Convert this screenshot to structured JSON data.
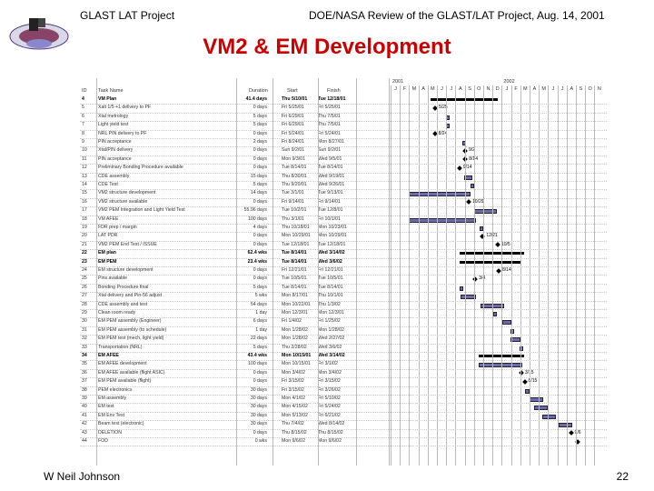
{
  "header": {
    "left": "GLAST LAT Project",
    "right": "DOE/NASA Review of the GLAST/LAT Project, Aug. 14, 2001"
  },
  "title": "VM2 & EM Development",
  "footer": {
    "author": "W Neil Johnson",
    "page": "22"
  },
  "gantt": {
    "columns": {
      "id": "ID",
      "name": "Task Name",
      "duration": "Duration",
      "start": "Start",
      "finish": "Finish"
    },
    "years": [
      "2001",
      "2002"
    ],
    "months": [
      "J",
      "F",
      "M",
      "A",
      "M",
      "J",
      "J",
      "A",
      "S",
      "O",
      "N",
      "D",
      "J",
      "F",
      "M",
      "A",
      "M",
      "J",
      "J",
      "A",
      "S",
      "O",
      "N"
    ],
    "rows": [
      {
        "id": "4",
        "name": "VM Plan",
        "duration": "41.4 days",
        "start": "Thu 5/10/01",
        "finish": "Tue 12/18/01",
        "bold": true
      },
      {
        "id": "5",
        "name": "Xalt 1/5 +1 delivery to PF",
        "duration": "0 days",
        "start": "Fri 5/25/01",
        "finish": "Fri 5/25/01"
      },
      {
        "id": "6",
        "name": "Xtal metrology",
        "duration": "5 days",
        "start": "Fri 6/29/01",
        "finish": "Thu 7/5/01"
      },
      {
        "id": "7",
        "name": "Light yield test",
        "duration": "5 days",
        "start": "Fri 6/29/01",
        "finish": "Thu 7/5/01"
      },
      {
        "id": "8",
        "name": "NRL PIN delivery to PF",
        "duration": "0 days",
        "start": "Fri 5/24/01",
        "finish": "Fri 5/24/01"
      },
      {
        "id": "9",
        "name": "PIN acceptance",
        "duration": "2 days",
        "start": "Fri 8/24/01",
        "finish": "Mon 8/27/01"
      },
      {
        "id": "10",
        "name": "Xtal/PIN delivery",
        "duration": "0 days",
        "start": "Sun 9/2/01",
        "finish": "Sun 9/2/01"
      },
      {
        "id": "11",
        "name": "PIN acceptance",
        "duration": "0 days",
        "start": "Mon 9/3/01",
        "finish": "Wed 9/5/01"
      },
      {
        "id": "12",
        "name": "Preliminary Bonding Procedure available",
        "duration": "0 days",
        "start": "Tue 8/14/01",
        "finish": "Tue 8/14/01"
      },
      {
        "id": "13",
        "name": "CDE assembly",
        "duration": "15 days",
        "start": "Thu 8/30/01",
        "finish": "Wed 9/19/01"
      },
      {
        "id": "14",
        "name": "CDE Test",
        "duration": "5 days",
        "start": "Thu 9/20/01",
        "finish": "Wed 9/26/01"
      },
      {
        "id": "15",
        "name": "VM2 structure development",
        "duration": "14 days",
        "start": "Tue 3/1/01",
        "finish": "Tue 9/13/01"
      },
      {
        "id": "16",
        "name": "VM2 structure available",
        "duration": "0 days",
        "start": "Fri 9/14/01",
        "finish": "Fri 9/14/01"
      },
      {
        "id": "17",
        "name": "VM2 PEM Integration and Light Yield Test",
        "duration": "55.96 days",
        "start": "Tue 10/2/01",
        "finish": "Tue 12/8/01"
      },
      {
        "id": "18",
        "name": "VM AFEE",
        "duration": "100 days",
        "start": "Thu 3/1/01",
        "finish": "Fri 10/1/01"
      },
      {
        "id": "19",
        "name": "FDR prep / margin",
        "duration": "4 days",
        "start": "Thu 10/18/01",
        "finish": "Mon 10/23/01"
      },
      {
        "id": "20",
        "name": "LAT PDR",
        "duration": "0 days",
        "start": "Mon 10/29/01",
        "finish": "Mon 10/29/01"
      },
      {
        "id": "21",
        "name": "VM2 PEM End Test / ISSUE",
        "duration": "0 days",
        "start": "Tue 12/18/01",
        "finish": "Tue 12/18/01"
      },
      {
        "id": "22",
        "name": "EM plan",
        "duration": "62.4 wks",
        "start": "Tue 8/14/01",
        "finish": "Wed 3/14/02",
        "bold": true
      },
      {
        "id": "23",
        "name": "EM PEM",
        "duration": "23.4 wks",
        "start": "Tue 8/14/01",
        "finish": "Wed 3/6/02",
        "bold": true
      },
      {
        "id": "24",
        "name": "EM structure development",
        "duration": "0 days",
        "start": "Fri 12/21/01",
        "finish": "Fri 12/21/01"
      },
      {
        "id": "25",
        "name": "Pins available",
        "duration": "0 days",
        "start": "Tue 10/5/01",
        "finish": "Tue 10/5/01"
      },
      {
        "id": "26",
        "name": "Bonding Procedure final",
        "duration": "5 days",
        "start": "Tue 8/14/01",
        "finish": "Tue 8/14/01"
      },
      {
        "id": "27",
        "name": "Xtal delivery and Pin-56 adjust",
        "duration": "5 wks",
        "start": "Mon 8/17/01",
        "finish": "Thu 10/1/01"
      },
      {
        "id": "28",
        "name": "CDE assembly and test",
        "duration": "54 days",
        "start": "Mon 10/22/01",
        "finish": "Thu 1/3/02"
      },
      {
        "id": "29",
        "name": "Clean room ready",
        "duration": "1 day",
        "start": "Mon 12/3/01",
        "finish": "Mon 12/3/01"
      },
      {
        "id": "30",
        "name": "EM PEM assembly (Engineer)",
        "duration": "6 days",
        "start": "Fri 1/4/02",
        "finish": "Fri 1/25/02"
      },
      {
        "id": "31",
        "name": "EM PEM assembly (to schedule)",
        "duration": "1 day",
        "start": "Mon 1/28/02",
        "finish": "Mon 1/28/02"
      },
      {
        "id": "32",
        "name": "EM PEM test (mech, light yield)",
        "duration": "22 days",
        "start": "Mon 1/28/02",
        "finish": "Wed 2/27/02"
      },
      {
        "id": "33",
        "name": "Transportation (NRL)",
        "duration": "5 days",
        "start": "Thu 2/28/02",
        "finish": "Wed 3/6/02"
      },
      {
        "id": "34",
        "name": "EM AFEE",
        "duration": "43.4 wks",
        "start": "Mon 10/15/01",
        "finish": "Wed 3/14/02",
        "bold": true
      },
      {
        "id": "35",
        "name": "EM AFEE development",
        "duration": "100 days",
        "start": "Mon 10/15/01",
        "finish": "Fri 3/1/02"
      },
      {
        "id": "36",
        "name": "EM AFEE available (flight ASIC)",
        "duration": "0 days",
        "start": "Mon 3/4/02",
        "finish": "Mon 3/4/02"
      },
      {
        "id": "37",
        "name": "EM PEM available (flight)",
        "duration": "0 days",
        "start": "Fri 3/15/02",
        "finish": "Fri 3/15/02"
      },
      {
        "id": "38",
        "name": "PEM electronics",
        "duration": "30 days",
        "start": "Fri 3/15/02",
        "finish": "Fri 3/26/02"
      },
      {
        "id": "39",
        "name": "EM assembly",
        "duration": "30 days",
        "start": "Mon 4/1/02",
        "finish": "Fri 5/10/02"
      },
      {
        "id": "40",
        "name": "EM test",
        "duration": "30 days",
        "start": "Mon 4/15/02",
        "finish": "Fri 5/24/02"
      },
      {
        "id": "41",
        "name": "EM Env Test",
        "duration": "30 days",
        "start": "Mon 5/13/02",
        "finish": "Fri 6/21/02"
      },
      {
        "id": "42",
        "name": "Beam test (electronic)",
        "duration": "30 days",
        "start": "Thu 7/4/02",
        "finish": "Wed 8/14/02"
      },
      {
        "id": "43",
        "name": "DELETION",
        "duration": "0 days",
        "start": "Thu 8/15/02",
        "finish": "Thu 8/15/02"
      },
      {
        "id": "44",
        "name": "FOD",
        "duration": "0 wks",
        "start": "Mon 9/6/02",
        "finish": "Mon 9/6/02"
      }
    ],
    "milestone_labels": [
      "5/25",
      "8/24",
      "9/2",
      "8/14",
      "9/14",
      "10/29",
      "12/21",
      "10/5",
      "8/14",
      "3/4",
      "3/15",
      "8/15",
      "9/6"
    ]
  }
}
